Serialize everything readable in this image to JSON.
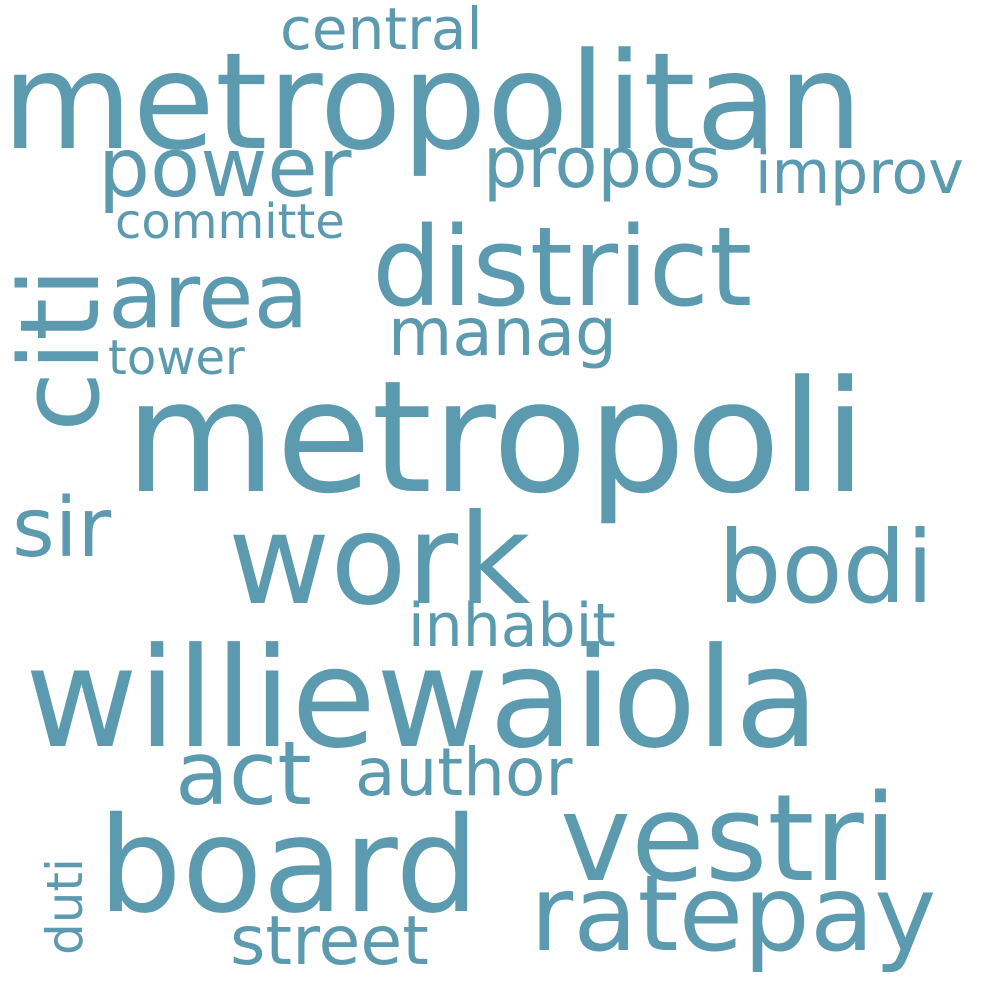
{
  "colors": {
    "background": "#ffffff",
    "text": "#5b9aaf"
  },
  "words": {
    "central": "central",
    "metropolitan": "metropolitan",
    "citi": "citi",
    "power": "power",
    "propos": "propos",
    "improv": "improv",
    "committe": "committe",
    "district": "district",
    "area": "area",
    "manag": "manag",
    "tower": "tower",
    "metropoli": "metropoli",
    "sir": "sir",
    "work": "work",
    "bodi": "bodi",
    "inhabit": "inhabit",
    "williewaiola": "williewaiola",
    "act": "act",
    "author": "author",
    "vestri": "vestri",
    "board": "board",
    "duti": "duti",
    "ratepay": "ratepay",
    "street": "street"
  }
}
